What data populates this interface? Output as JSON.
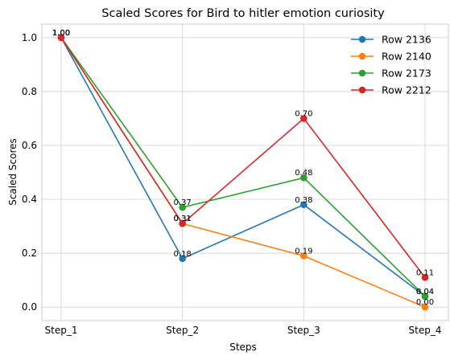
{
  "chart_data": {
    "type": "line",
    "title": "Scaled Scores for Bird to hitler emotion curiosity",
    "xlabel": "Steps",
    "ylabel": "Scaled Scores",
    "categories": [
      "Step_1",
      "Step_2",
      "Step_3",
      "Step_4"
    ],
    "ylim": [
      -0.05,
      1.05
    ],
    "yticks": [
      "0.0",
      "0.2",
      "0.4",
      "0.6",
      "0.8",
      "1.0"
    ],
    "grid": true,
    "legend_position": "top-right",
    "series": [
      {
        "name": "Row 2136",
        "color": "#1f77b4",
        "values": [
          1.0,
          0.18,
          0.38,
          0.04
        ],
        "labels": [
          "1.00",
          "0.18",
          "0.38",
          "0.04"
        ]
      },
      {
        "name": "Row 2140",
        "color": "#ff7f0e",
        "values": [
          1.0,
          0.31,
          0.19,
          0.0
        ],
        "labels": [
          "1.00",
          "0.31",
          "0.19",
          "0.00"
        ]
      },
      {
        "name": "Row 2173",
        "color": "#2ca02c",
        "values": [
          1.0,
          0.37,
          0.48,
          0.04
        ],
        "labels": [
          "1.00",
          "0.37",
          "0.48",
          "0.04"
        ]
      },
      {
        "name": "Row 2212",
        "color": "#d62728",
        "values": [
          1.0,
          0.31,
          0.7,
          0.11
        ],
        "labels": [
          "1.00",
          "0.31",
          "0.70",
          "0.11"
        ]
      }
    ]
  }
}
